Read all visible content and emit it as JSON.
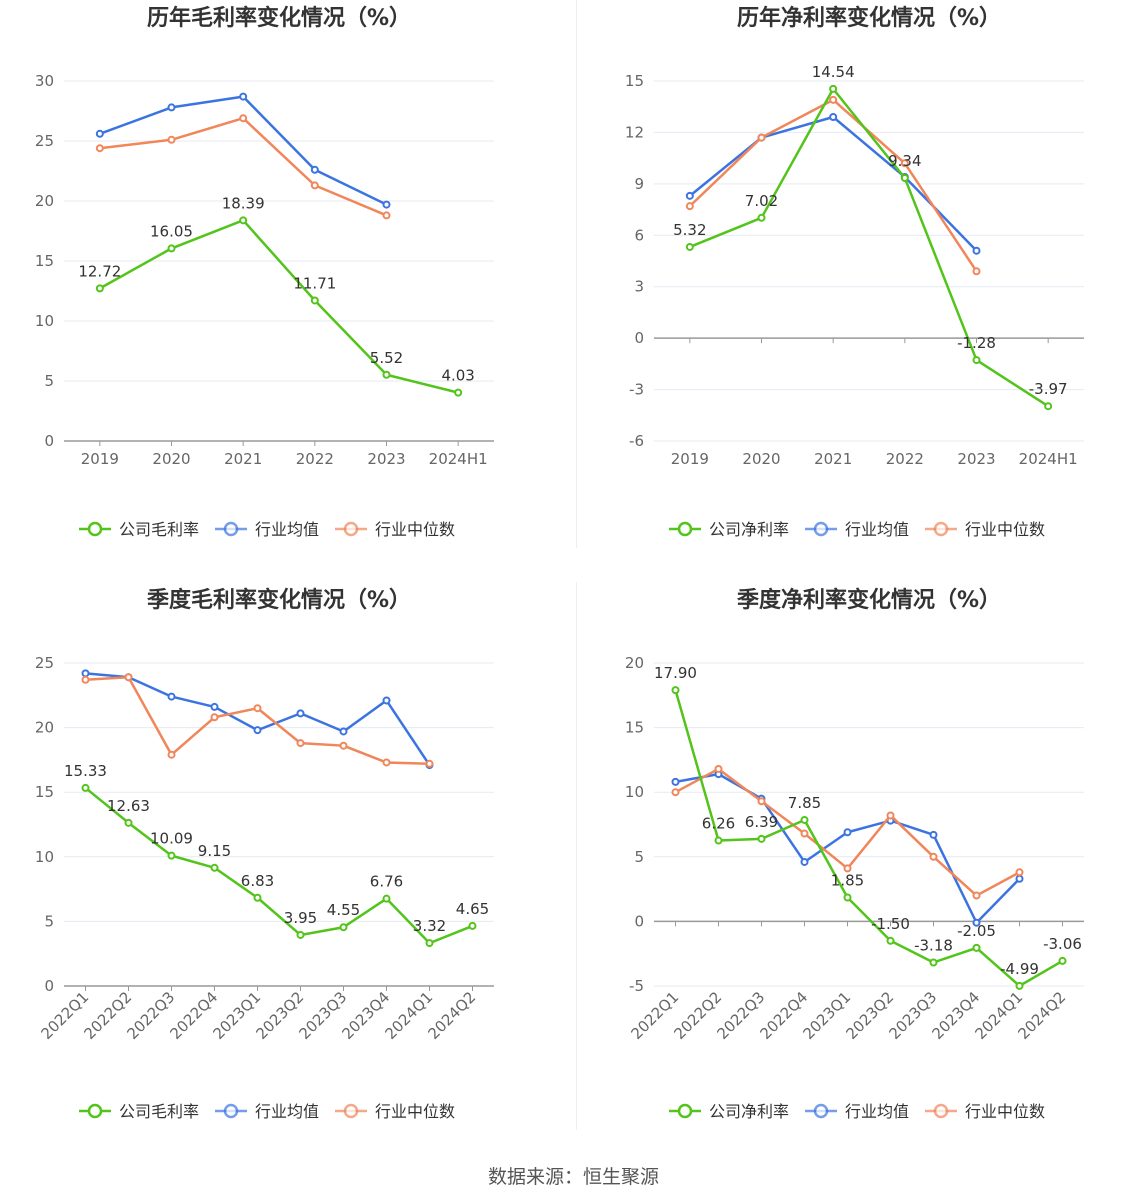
{
  "source": "数据来源：恒生聚源",
  "chart_data": [
    {
      "type": "line",
      "title": "历年毛利率变化情况（%）",
      "categories": [
        "2019",
        "2020",
        "2021",
        "2022",
        "2023",
        "2024H1"
      ],
      "ylim": [
        0,
        30
      ],
      "yticks": [
        0,
        5,
        10,
        15,
        20,
        25,
        30
      ],
      "grid": true,
      "legend_placement": "bottom",
      "series": [
        {
          "name": "公司毛利率",
          "color": "#52c41a",
          "labels": true,
          "values": [
            12.72,
            16.05,
            18.39,
            11.71,
            5.52,
            4.03
          ]
        },
        {
          "name": "行业均值",
          "color": "#3b74e0",
          "labels": false,
          "values": [
            25.6,
            27.8,
            28.7,
            22.6,
            19.7,
            null
          ]
        },
        {
          "name": "行业中位数",
          "color": "#f0865a",
          "labels": false,
          "values": [
            24.4,
            25.1,
            26.9,
            21.3,
            18.8,
            null
          ]
        }
      ]
    },
    {
      "type": "line",
      "title": "历年净利率变化情况（%）",
      "categories": [
        "2019",
        "2020",
        "2021",
        "2022",
        "2023",
        "2024H1"
      ],
      "ylim": [
        -6,
        15
      ],
      "yticks": [
        -6,
        -3,
        0,
        3,
        6,
        9,
        12,
        15
      ],
      "grid": true,
      "legend_placement": "bottom",
      "series": [
        {
          "name": "公司净利率",
          "color": "#52c41a",
          "labels": true,
          "values": [
            5.32,
            7.02,
            14.54,
            9.34,
            -1.28,
            -3.97
          ]
        },
        {
          "name": "行业均值",
          "color": "#3b74e0",
          "labels": false,
          "values": [
            8.3,
            11.7,
            12.9,
            9.4,
            5.1,
            null
          ]
        },
        {
          "name": "行业中位数",
          "color": "#f0865a",
          "labels": false,
          "values": [
            7.7,
            11.7,
            13.9,
            10.2,
            3.9,
            null
          ]
        }
      ]
    },
    {
      "type": "line",
      "title": "季度毛利率变化情况（%）",
      "categories": [
        "2022Q1",
        "2022Q2",
        "2022Q3",
        "2022Q4",
        "2023Q1",
        "2023Q2",
        "2023Q3",
        "2023Q4",
        "2024Q1",
        "2024Q2"
      ],
      "ylim": [
        0,
        25
      ],
      "yticks": [
        0,
        5,
        10,
        15,
        20,
        25
      ],
      "grid": true,
      "legend_placement": "bottom",
      "series": [
        {
          "name": "公司毛利率",
          "color": "#52c41a",
          "labels": true,
          "values": [
            15.33,
            12.63,
            10.09,
            9.15,
            6.83,
            3.95,
            4.55,
            6.76,
            3.32,
            4.65
          ]
        },
        {
          "name": "行业均值",
          "color": "#3b74e0",
          "labels": false,
          "values": [
            24.2,
            23.9,
            22.4,
            21.6,
            19.8,
            21.1,
            19.7,
            22.1,
            17.1,
            null
          ]
        },
        {
          "name": "行业中位数",
          "color": "#f0865a",
          "labels": false,
          "values": [
            23.7,
            23.9,
            17.9,
            20.8,
            21.5,
            18.8,
            18.6,
            17.3,
            17.2,
            null
          ]
        }
      ]
    },
    {
      "type": "line",
      "title": "季度净利率变化情况（%）",
      "categories": [
        "2022Q1",
        "2022Q2",
        "2022Q3",
        "2022Q4",
        "2023Q1",
        "2023Q2",
        "2023Q3",
        "2023Q4",
        "2024Q1",
        "2024Q2"
      ],
      "ylim": [
        -5,
        20
      ],
      "yticks": [
        -5,
        0,
        5,
        10,
        15,
        20
      ],
      "grid": true,
      "legend_placement": "bottom",
      "series": [
        {
          "name": "公司净利率",
          "color": "#52c41a",
          "labels": true,
          "values": [
            17.9,
            6.26,
            6.39,
            7.85,
            1.85,
            -1.5,
            -3.18,
            -2.05,
            -4.99,
            -3.06
          ]
        },
        {
          "name": "行业均值",
          "color": "#3b74e0",
          "labels": false,
          "values": [
            10.8,
            11.4,
            9.5,
            4.6,
            6.9,
            7.8,
            6.7,
            -0.1,
            3.3,
            null
          ]
        },
        {
          "name": "行业中位数",
          "color": "#f0865a",
          "labels": false,
          "values": [
            10.0,
            11.8,
            9.3,
            6.8,
            4.1,
            8.2,
            5.0,
            2.0,
            3.8,
            null
          ]
        }
      ]
    }
  ]
}
